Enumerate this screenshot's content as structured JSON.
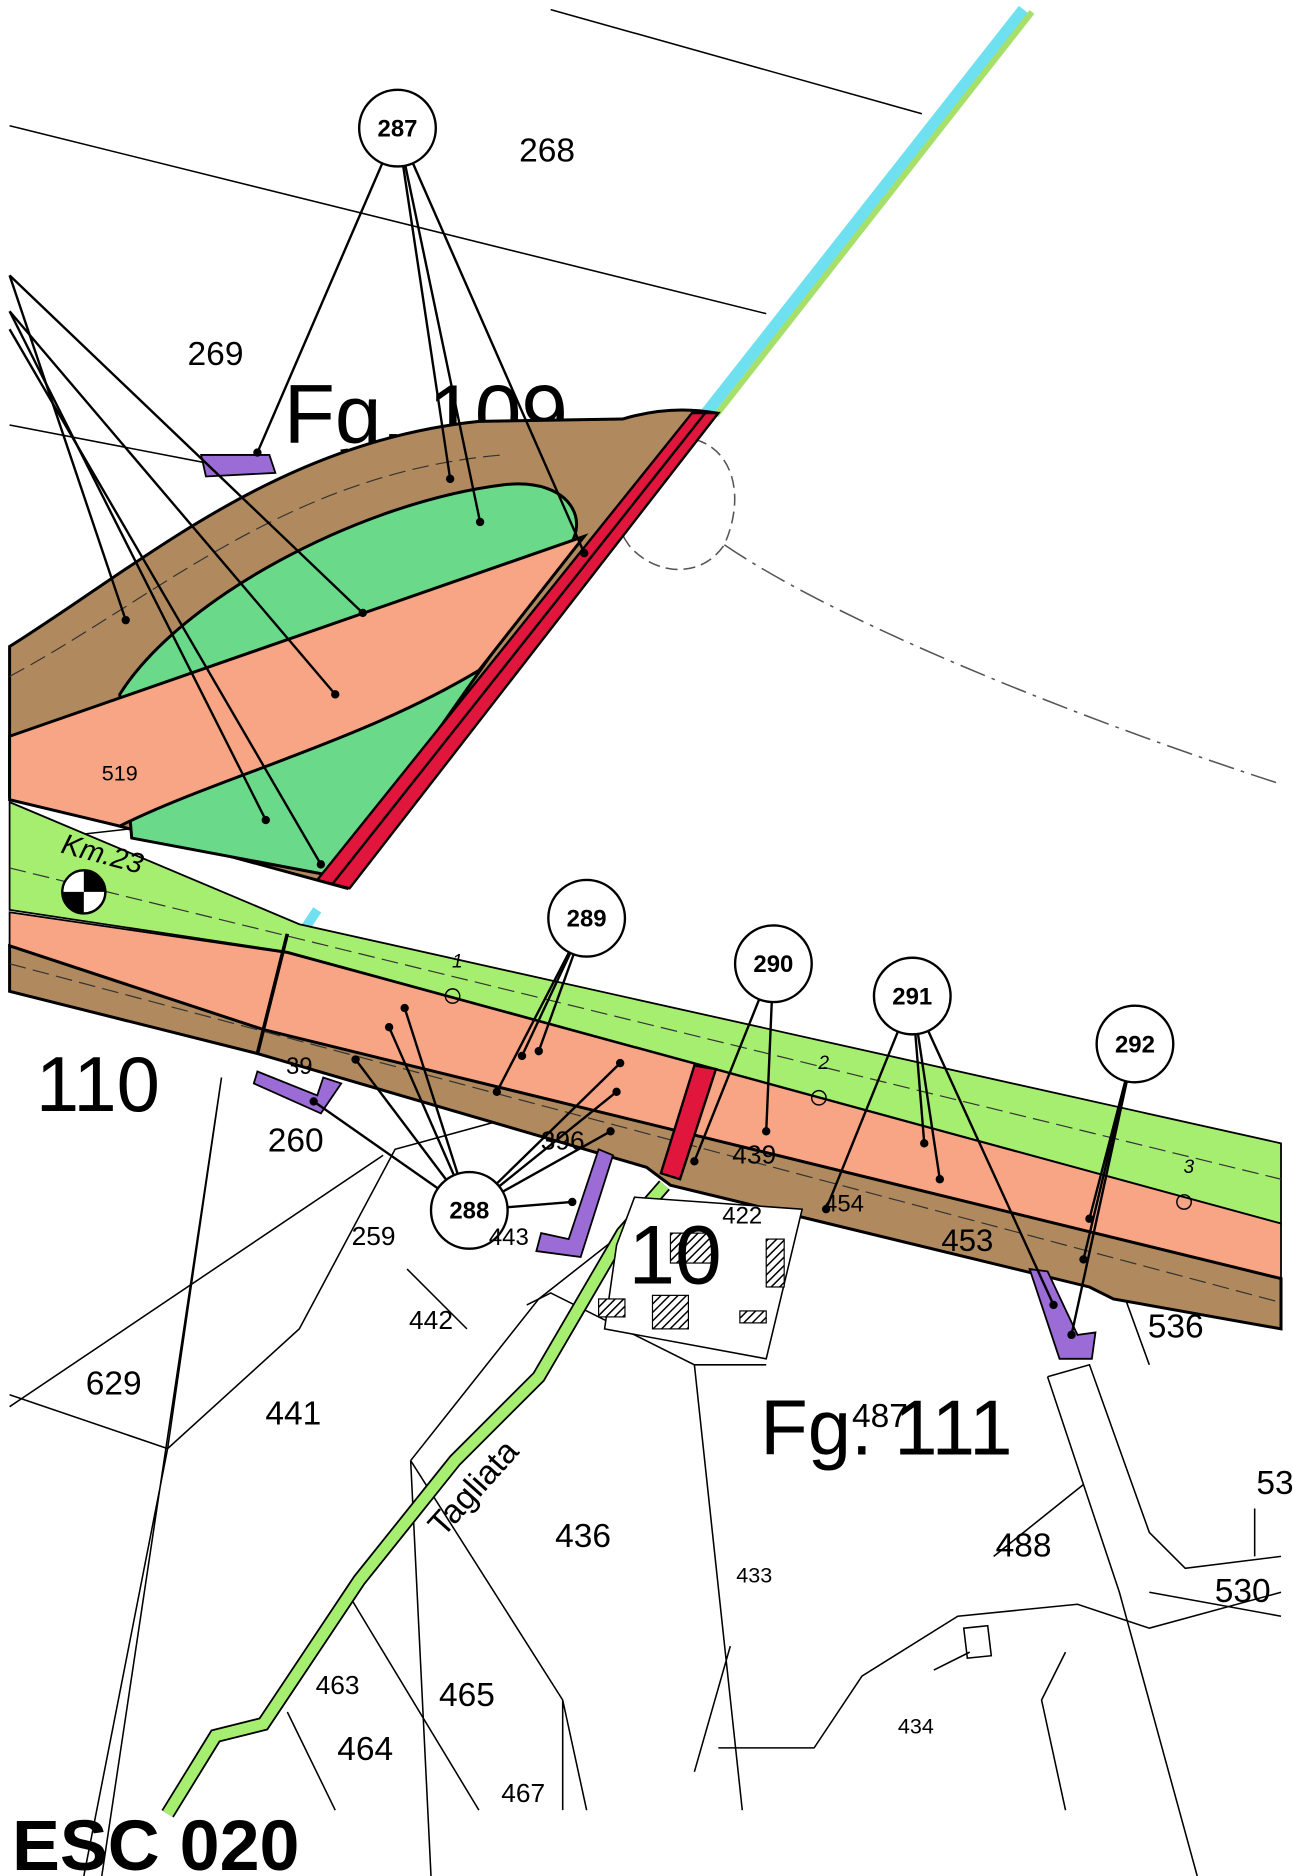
{
  "sheets": [
    "Fg. 109",
    "110",
    "Fg. 111",
    "10"
  ],
  "callouts": [
    "287",
    "289",
    "290",
    "291",
    "292",
    "288"
  ],
  "parcels": [
    "268",
    "269",
    "519",
    "260",
    "39",
    "396",
    "439",
    "454",
    "422",
    "259",
    "443",
    "453",
    "536",
    "442",
    "629",
    "441",
    "487",
    "436",
    "488",
    "53",
    "530",
    "433",
    "463",
    "465",
    "434",
    "464",
    "467"
  ],
  "stations": [
    "1",
    "2",
    "3"
  ],
  "kilometer": "Km.23",
  "road_name": "Tagliata",
  "code": "ESC 020"
}
